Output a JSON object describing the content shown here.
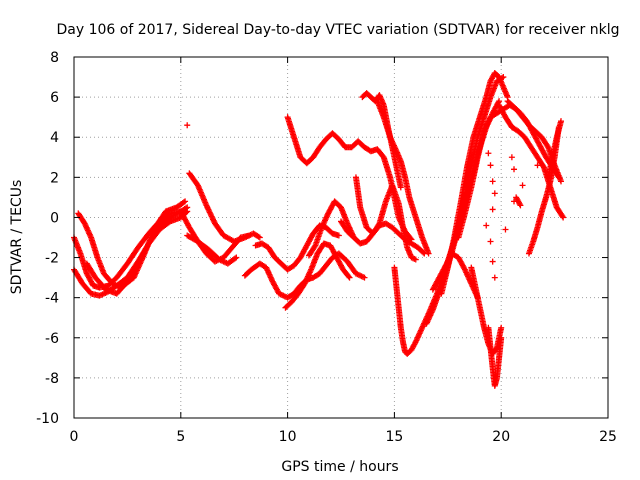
{
  "chart_data": {
    "type": "scatter",
    "title": "Day 106 of 2017, Sidereal Day-to-day VTEC variation (SDTVAR) for receiver nklg",
    "xlabel": "GPS time / hours",
    "ylabel": "SDTVAR / TECUs",
    "xlim": [
      0,
      25
    ],
    "ylim": [
      -10,
      8
    ],
    "xticks": [
      "0",
      "5",
      "10",
      "15",
      "20",
      "25"
    ],
    "yticks": [
      "-10",
      "-8",
      "-6",
      "-4",
      "-2",
      "0",
      "2",
      "4",
      "6",
      "8"
    ],
    "grid": true,
    "marker": "plus",
    "series_color": "#ff0000",
    "tracks": [
      {
        "x": [
          0.0,
          0.3,
          0.6,
          0.9,
          1.2,
          1.6,
          2.0,
          2.5,
          3.0,
          3.5,
          4.0,
          4.5,
          5.0,
          5.4,
          5.8,
          6.2,
          6.6,
          7.0,
          7.4,
          7.8,
          8.2
        ],
        "y": [
          -1.0,
          -1.8,
          -2.8,
          -3.4,
          -3.5,
          -3.4,
          -3.0,
          -2.3,
          -1.5,
          -0.8,
          -0.2,
          0.2,
          0.3,
          -0.5,
          -1.2,
          -1.8,
          -2.2,
          -2.0,
          -1.5,
          -1.0,
          -0.9
        ]
      },
      {
        "x": [
          0.0,
          0.4,
          0.8,
          1.2,
          1.6,
          2.0,
          2.5,
          3.0,
          3.5,
          4.0,
          4.5,
          5.0,
          5.3
        ],
        "y": [
          -2.6,
          -3.3,
          -3.8,
          -3.9,
          -3.7,
          -3.4,
          -3.0,
          -2.2,
          -1.3,
          -0.5,
          0.0,
          0.3,
          0.5
        ]
      },
      {
        "x": [
          0.2,
          0.5,
          0.8,
          1.1,
          1.4,
          1.8,
          2.2,
          2.8,
          3.3,
          3.8,
          4.3,
          4.8,
          5.2
        ],
        "y": [
          0.2,
          -0.3,
          -1.0,
          -2.0,
          -2.8,
          -3.3,
          -3.5,
          -3.0,
          -1.8,
          -0.5,
          0.3,
          0.5,
          0.8
        ]
      },
      {
        "x": [
          0.6,
          1.0,
          1.5,
          2.0,
          2.5,
          3.0,
          3.5,
          4.0,
          4.5,
          5.0,
          5.3
        ],
        "y": [
          -2.3,
          -3.0,
          -3.6,
          -3.8,
          -3.2,
          -2.3,
          -1.3,
          -0.6,
          -0.2,
          0.0,
          0.3
        ]
      },
      {
        "x": [
          5.4,
          5.8,
          6.2,
          6.6,
          7.0,
          7.5,
          8.0,
          8.4,
          8.7
        ],
        "y": [
          2.2,
          1.6,
          0.6,
          -0.3,
          -0.9,
          -1.2,
          -1.0,
          -0.8,
          -1.0
        ]
      },
      {
        "x": [
          5.3,
          5.8,
          6.3,
          6.8,
          7.2,
          7.6
        ],
        "y": [
          -0.9,
          -1.2,
          -1.6,
          -2.1,
          -2.3,
          -2.0
        ]
      },
      {
        "x": [
          8.5,
          8.8,
          9.1,
          9.4,
          9.7,
          10.0,
          10.3,
          10.6,
          10.9,
          11.2,
          11.5,
          11.8,
          12.1,
          12.4
        ],
        "y": [
          -1.4,
          -1.3,
          -1.5,
          -2.0,
          -2.3,
          -2.6,
          -2.4,
          -2.0,
          -1.4,
          -0.8,
          -0.4,
          -0.5,
          -0.8,
          -0.9
        ]
      },
      {
        "x": [
          8.0,
          8.3,
          8.7,
          9.0,
          9.3,
          9.6,
          10.0,
          10.3,
          10.6,
          10.9,
          11.2,
          11.5,
          11.8,
          12.1,
          12.4,
          12.8,
          13.2,
          13.6
        ],
        "y": [
          -2.9,
          -2.6,
          -2.3,
          -2.5,
          -3.2,
          -3.8,
          -4.0,
          -3.8,
          -3.4,
          -3.1,
          -3.0,
          -2.8,
          -2.4,
          -2.0,
          -1.8,
          -2.2,
          -2.8,
          -3.0
        ]
      },
      {
        "x": [
          9.9,
          10.2,
          10.5,
          10.8,
          11.1,
          11.4,
          11.7,
          12.0,
          12.3,
          12.6,
          12.9
        ],
        "y": [
          -4.5,
          -4.2,
          -3.8,
          -3.3,
          -2.6,
          -1.8,
          -1.3,
          -1.4,
          -2.0,
          -2.6,
          -3.0
        ]
      },
      {
        "x": [
          10.0,
          10.3,
          10.6,
          10.9,
          11.2,
          11.5,
          11.8,
          12.1,
          12.4,
          12.7,
          13.0,
          13.3,
          13.6,
          13.9,
          14.2,
          14.5,
          14.8,
          15.0,
          15.2,
          15.5,
          15.8
        ],
        "y": [
          5.0,
          4.0,
          3.0,
          2.7,
          3.0,
          3.5,
          3.9,
          4.2,
          3.9,
          3.5,
          3.5,
          3.8,
          3.5,
          3.3,
          3.4,
          3.0,
          2.0,
          1.0,
          0.0,
          -0.7,
          -1.1
        ]
      },
      {
        "x": [
          12.5,
          12.8,
          13.1,
          13.4,
          13.7,
          14.0,
          14.3,
          14.6,
          14.9,
          15.2,
          15.5,
          15.8,
          16.1,
          16.4
        ],
        "y": [
          -0.2,
          -0.7,
          -1.0,
          -1.3,
          -1.2,
          -0.8,
          -0.4,
          -0.3,
          -0.5,
          -0.8,
          -1.1,
          -1.3,
          -1.5,
          -1.8
        ]
      },
      {
        "x": [
          11.0,
          11.3,
          11.6,
          11.9,
          12.2,
          12.5,
          12.8,
          13.1
        ],
        "y": [
          -1.9,
          -1.4,
          -0.5,
          0.2,
          0.8,
          0.5,
          -0.3,
          -1.0
        ]
      },
      {
        "x": [
          13.2,
          13.4,
          13.7,
          14.0,
          14.3,
          14.6,
          14.9,
          15.2,
          15.4,
          15.6,
          15.8,
          16.0
        ],
        "y": [
          2.0,
          0.5,
          -0.5,
          -0.8,
          -0.3,
          0.8,
          1.6,
          0.7,
          -0.5,
          -1.5,
          -2.0,
          -2.1
        ]
      },
      {
        "x": [
          13.5,
          13.7,
          13.9,
          14.1,
          14.3,
          14.5,
          14.7,
          14.9,
          15.1,
          15.3
        ],
        "y": [
          6.0,
          6.2,
          6.0,
          5.8,
          6.1,
          5.6,
          4.5,
          3.5,
          2.5,
          1.5
        ]
      },
      {
        "x": [
          14.2,
          14.5,
          14.8,
          15.1,
          15.3,
          15.5,
          15.7,
          16.0,
          16.3,
          16.6
        ],
        "y": [
          5.8,
          5.0,
          4.0,
          3.3,
          2.8,
          2.0,
          1.0,
          0.0,
          -1.0,
          -1.8
        ]
      },
      {
        "x": [
          15.0,
          15.1,
          15.2,
          15.3,
          15.4,
          15.5,
          15.6,
          15.8,
          16.0,
          16.3,
          16.6,
          17.0,
          17.4,
          17.8,
          18.2,
          18.6,
          19.0,
          19.3,
          19.6,
          19.9
        ],
        "y": [
          -2.5,
          -3.5,
          -4.5,
          -5.5,
          -6.2,
          -6.7,
          -6.8,
          -6.6,
          -6.2,
          -5.5,
          -4.8,
          -3.8,
          -2.5,
          -1.2,
          0.5,
          2.0,
          3.5,
          4.5,
          5.2,
          5.8
        ]
      },
      {
        "x": [
          16.5,
          16.8,
          17.1,
          17.4,
          17.7,
          18.0,
          18.3,
          18.6,
          18.9,
          19.2,
          19.5,
          19.8,
          20.1
        ],
        "y": [
          -5.3,
          -4.6,
          -3.7,
          -2.8,
          -1.7,
          -0.5,
          1.0,
          2.6,
          4.0,
          5.0,
          6.0,
          6.8,
          7.0
        ]
      },
      {
        "x": [
          17.2,
          17.5,
          17.8,
          18.1,
          18.4,
          18.7,
          19.0,
          19.3,
          19.5,
          19.7,
          19.9,
          20.1,
          20.3
        ],
        "y": [
          -3.8,
          -2.5,
          -1.0,
          0.7,
          2.5,
          4.0,
          5.0,
          6.0,
          6.8,
          7.2,
          7.0,
          6.5,
          6.0
        ]
      },
      {
        "x": [
          18.0,
          18.3,
          18.6,
          18.9,
          19.2,
          19.5,
          19.8,
          20.1,
          20.4,
          20.7,
          21.0,
          21.3,
          21.6,
          21.9,
          22.2,
          22.5,
          22.8
        ],
        "y": [
          -1.0,
          0.2,
          1.5,
          3.0,
          4.3,
          5.0,
          5.2,
          5.4,
          5.6,
          5.4,
          5.0,
          4.6,
          4.3,
          4.0,
          3.5,
          2.6,
          1.8
        ]
      },
      {
        "x": [
          19.9,
          20.2,
          20.5,
          20.8,
          21.1,
          21.4,
          21.7,
          22.0,
          22.3,
          22.6,
          22.9
        ],
        "y": [
          5.6,
          5.0,
          4.5,
          4.3,
          4.0,
          3.5,
          3.0,
          2.5,
          1.5,
          0.5,
          0.0
        ]
      },
      {
        "x": [
          20.3,
          20.6,
          20.9,
          21.2,
          21.5,
          21.8,
          22.1,
          22.4,
          22.7
        ],
        "y": [
          5.8,
          5.5,
          5.2,
          4.8,
          4.2,
          3.6,
          3.0,
          2.5,
          2.0
        ]
      },
      {
        "x": [
          19.4,
          19.5,
          19.6,
          19.7,
          19.8,
          19.9,
          20.0
        ],
        "y": [
          -5.5,
          -6.5,
          -7.5,
          -8.4,
          -8.0,
          -7.0,
          -6.0
        ]
      },
      {
        "x": [
          18.6,
          18.8,
          19.0,
          19.2,
          19.4,
          19.6,
          19.8,
          20.0
        ],
        "y": [
          -2.5,
          -3.5,
          -4.5,
          -5.5,
          -6.3,
          -6.8,
          -6.5,
          -5.5
        ]
      },
      {
        "x": [
          16.8,
          17.1,
          17.4,
          17.7,
          18.0,
          18.3,
          18.6,
          18.9
        ],
        "y": [
          -3.6,
          -3.0,
          -2.4,
          -1.8,
          -2.0,
          -2.6,
          -3.3,
          -4.0
        ]
      },
      {
        "x": [
          21.3,
          21.5,
          21.7,
          21.9,
          22.1,
          22.3,
          22.5,
          22.7
        ],
        "y": [
          -1.8,
          -1.2,
          -0.5,
          0.3,
          1.0,
          1.8,
          3.0,
          4.5
        ]
      },
      {
        "x": [
          22.2,
          22.4,
          22.6,
          22.8
        ],
        "y": [
          2.0,
          3.0,
          4.0,
          4.8
        ]
      },
      {
        "x": [
          20.7,
          20.9
        ],
        "y": [
          1.0,
          0.6
        ]
      }
    ],
    "scattered": [
      {
        "x": 5.3,
        "y": 4.6
      },
      {
        "x": 19.5,
        "y": 2.6
      },
      {
        "x": 19.6,
        "y": 1.8
      },
      {
        "x": 19.7,
        "y": 1.2
      },
      {
        "x": 19.6,
        "y": 0.4
      },
      {
        "x": 19.5,
        "y": -1.2
      },
      {
        "x": 19.6,
        "y": -2.2
      },
      {
        "x": 19.7,
        "y": -3.0
      },
      {
        "x": 20.6,
        "y": 2.4
      },
      {
        "x": 20.5,
        "y": 3.0
      },
      {
        "x": 20.6,
        "y": 0.8
      },
      {
        "x": 21.7,
        "y": 2.6
      },
      {
        "x": 19.4,
        "y": 3.2
      },
      {
        "x": 21.0,
        "y": 1.6
      },
      {
        "x": 19.3,
        "y": -0.4
      },
      {
        "x": 20.2,
        "y": -0.6
      }
    ]
  }
}
